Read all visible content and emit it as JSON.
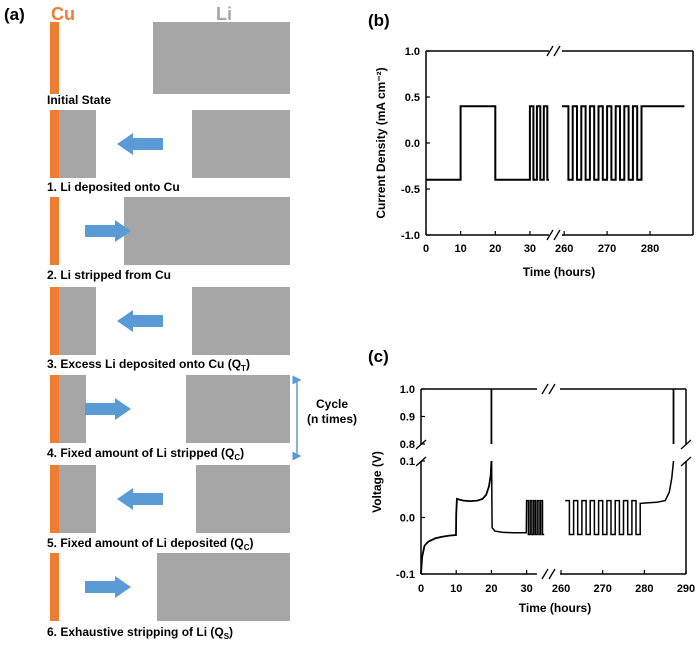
{
  "panel_a": {
    "tag": "(a)",
    "cu_label": "Cu",
    "li_label": "Li",
    "cycle_label_1": "Cycle",
    "cycle_label_2": "(n times)",
    "steps": [
      {
        "text": "Initial State"
      },
      {
        "text": "1. Li deposited onto Cu",
        "arrow": "left"
      },
      {
        "text": "2. Li stripped from Cu",
        "arrow": "right"
      },
      {
        "text": "3. Excess Li deposited onto Cu (Q",
        "sub": "T",
        "tail": ")",
        "arrow": "left"
      },
      {
        "text": "4. Fixed amount of Li stripped (Q",
        "sub": "C",
        "tail": ")",
        "arrow": "right"
      },
      {
        "text": "5. Fixed amount of Li deposited (Q",
        "sub": "C",
        "tail": ")",
        "arrow": "left"
      },
      {
        "text": "6. Exhaustive stripping of Li (Q",
        "sub": "S",
        "tail": ")",
        "arrow": "right"
      }
    ],
    "colors": {
      "cu": "#ed7d31",
      "li": "#a6a6a6",
      "arrow": "#5b9bd5",
      "cycle": "#5b9bd5"
    }
  },
  "panel_b": {
    "tag": "(b)"
  },
  "panel_c": {
    "tag": "(c)"
  },
  "chart_data": [
    {
      "type": "line",
      "ylabel": "Current Density (mA cm⁻²)",
      "xlabel": "Time (hours)",
      "ylim": [
        -1.0,
        1.0
      ],
      "yticks": [
        "1.0",
        "0.5",
        "0.0",
        "-0.5",
        "-1.0"
      ],
      "xticks": [
        "0",
        "10",
        "20",
        "30",
        "260",
        "270",
        "280"
      ],
      "x_break": [
        35,
        259
      ],
      "series": [
        {
          "x": [
            0,
            10,
            10,
            20,
            20,
            30,
            30,
            31,
            31,
            32,
            32,
            33,
            33,
            34,
            34,
            35,
            35,
            35.5,
            35.5,
            259.5,
            259.5,
            261,
            261,
            262,
            262,
            263,
            263,
            264,
            264,
            265,
            265,
            266,
            266,
            267,
            267,
            268,
            268,
            269,
            269,
            270,
            270,
            271,
            271,
            272,
            272,
            273,
            273,
            274,
            274,
            275,
            275,
            276,
            276,
            277,
            277,
            278,
            278,
            288
          ],
          "y": [
            -0.4,
            -0.4,
            0.4,
            0.4,
            -0.4,
            -0.4,
            0.4,
            0.4,
            -0.4,
            -0.4,
            0.4,
            0.4,
            -0.4,
            -0.4,
            0.4,
            0.4,
            -0.4,
            -0.4,
            null,
            null,
            0.4,
            0.4,
            -0.4,
            -0.4,
            0.4,
            0.4,
            -0.4,
            -0.4,
            0.4,
            0.4,
            -0.4,
            -0.4,
            0.4,
            0.4,
            -0.4,
            -0.4,
            0.4,
            0.4,
            -0.4,
            -0.4,
            0.4,
            0.4,
            -0.4,
            -0.4,
            0.4,
            0.4,
            -0.4,
            -0.4,
            0.4,
            0.4,
            -0.4,
            -0.4,
            0.4,
            0.4,
            -0.4,
            -0.4,
            0.4,
            0.4
          ]
        }
      ]
    },
    {
      "type": "line",
      "ylabel": "Voltage (V)",
      "xlabel": "Time (hours)",
      "yticks_upper": [
        "1.0",
        "0.9",
        "0.8"
      ],
      "yticks_lower": [
        "0.1",
        "0.0",
        "-0.1"
      ],
      "y_break": [
        0.1,
        0.8
      ],
      "xticks": [
        "0",
        "10",
        "20",
        "30",
        "260",
        "270",
        "280",
        "290"
      ],
      "x_break": [
        35,
        259
      ],
      "deposition_plateau_v": -0.03,
      "stripping_plateau_v": 0.03,
      "stripping_end_v": 1.0
    }
  ]
}
